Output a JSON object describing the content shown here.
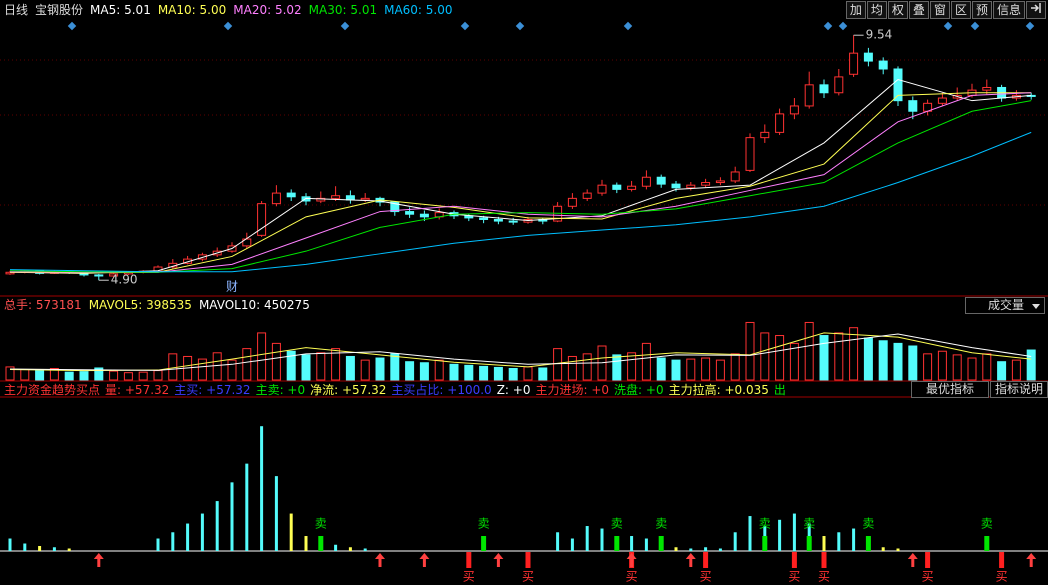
{
  "toolbar": {
    "period": "日线",
    "stock": "宝钢股份",
    "buttons": [
      "加",
      "均",
      "权",
      "叠",
      "窗",
      "区",
      "预",
      "信息"
    ]
  },
  "chart_data": [
    {
      "type": "candlestick",
      "ylim": [
        4.62,
        9.79
      ],
      "up_color": "#ff3232",
      "down_color": "#54fcfc",
      "open": [
        5.02,
        5.05,
        5.08,
        5.03,
        5.06,
        5.04,
        5.0,
        4.98,
        5.02,
        5.05,
        5.07,
        5.15,
        5.22,
        5.3,
        5.38,
        5.45,
        5.55,
        5.75,
        6.35,
        6.55,
        6.48,
        6.4,
        6.45,
        6.5,
        6.42,
        6.45,
        6.38,
        6.2,
        6.15,
        6.1,
        6.18,
        6.12,
        6.08,
        6.05,
        6.02,
        6.0,
        6.05,
        6.02,
        6.3,
        6.45,
        6.55,
        6.7,
        6.62,
        6.68,
        6.85,
        6.72,
        6.65,
        6.7,
        6.75,
        6.78,
        6.98,
        7.6,
        7.7,
        8.05,
        8.2,
        8.6,
        8.45,
        8.8,
        9.2,
        9.05,
        8.9,
        8.3,
        8.1,
        8.25,
        8.35,
        8.4,
        8.5,
        8.55,
        8.35,
        8.4
      ],
      "high": [
        5.08,
        5.1,
        5.09,
        5.08,
        5.07,
        5.05,
        5.02,
        5.04,
        5.07,
        5.09,
        5.18,
        5.3,
        5.36,
        5.42,
        5.52,
        5.62,
        5.8,
        6.4,
        6.7,
        6.62,
        6.55,
        6.58,
        6.68,
        6.6,
        6.55,
        6.48,
        6.4,
        6.28,
        6.22,
        6.26,
        6.22,
        6.16,
        6.12,
        6.1,
        6.08,
        6.1,
        6.08,
        6.38,
        6.55,
        6.62,
        6.8,
        6.75,
        6.78,
        6.98,
        6.9,
        6.78,
        6.76,
        6.82,
        6.85,
        7.05,
        7.68,
        7.85,
        8.15,
        8.35,
        8.85,
        8.7,
        8.9,
        9.54,
        9.3,
        9.12,
        8.95,
        8.38,
        8.32,
        8.45,
        8.55,
        8.62,
        8.7,
        8.6,
        8.5,
        8.45
      ],
      "low": [
        5.0,
        5.03,
        5.01,
        5.02,
        5.02,
        4.97,
        4.9,
        4.96,
        5.0,
        5.03,
        5.05,
        5.12,
        5.2,
        5.26,
        5.34,
        5.42,
        5.5,
        5.72,
        6.3,
        6.4,
        6.32,
        6.36,
        6.4,
        6.35,
        6.38,
        6.3,
        6.12,
        6.08,
        6.02,
        6.05,
        6.06,
        6.02,
        5.98,
        5.96,
        5.95,
        5.97,
        5.96,
        6.0,
        6.25,
        6.4,
        6.5,
        6.55,
        6.58,
        6.62,
        6.65,
        6.58,
        6.6,
        6.66,
        6.7,
        6.74,
        6.95,
        7.5,
        7.65,
        7.95,
        8.15,
        8.35,
        8.4,
        8.75,
        8.95,
        8.8,
        8.2,
        7.95,
        8.02,
        8.2,
        8.3,
        8.36,
        8.42,
        8.28,
        8.3,
        8.32
      ],
      "close": [
        5.05,
        5.08,
        5.03,
        5.06,
        5.04,
        5.0,
        4.98,
        5.02,
        5.05,
        5.07,
        5.15,
        5.22,
        5.3,
        5.38,
        5.45,
        5.55,
        5.68,
        6.35,
        6.55,
        6.48,
        6.4,
        6.45,
        6.5,
        6.42,
        6.45,
        6.38,
        6.2,
        6.15,
        6.1,
        6.18,
        6.12,
        6.08,
        6.05,
        6.02,
        6.0,
        6.05,
        6.02,
        6.3,
        6.45,
        6.55,
        6.7,
        6.62,
        6.68,
        6.85,
        6.72,
        6.65,
        6.7,
        6.75,
        6.78,
        6.95,
        7.6,
        7.7,
        8.05,
        8.2,
        8.6,
        8.45,
        8.75,
        9.2,
        9.05,
        8.9,
        8.3,
        8.1,
        8.25,
        8.35,
        8.4,
        8.5,
        8.55,
        8.35,
        8.4,
        8.38
      ],
      "ma_x": [
        0,
        5,
        10,
        15,
        20,
        25,
        30,
        35,
        40,
        45,
        50,
        55,
        60,
        65,
        69
      ],
      "series": [
        {
          "name": "MA5:",
          "color": "#ffffff",
          "readout": 5.01,
          "readout_label": "5.01",
          "values": [
            5.05,
            5.03,
            5.08,
            5.5,
            6.45,
            6.4,
            6.15,
            6.03,
            6.12,
            6.62,
            6.7,
            7.5,
            8.7,
            8.3,
            8.4
          ]
        },
        {
          "name": "MA10:",
          "color": "#ffff54",
          "readout": 5,
          "readout_label": "5.00",
          "values": [
            5.05,
            5.04,
            5.05,
            5.35,
            6.1,
            6.42,
            6.28,
            6.08,
            6.06,
            6.45,
            6.68,
            7.1,
            8.4,
            8.45,
            8.45
          ]
        },
        {
          "name": "MA20:",
          "color": "#ff80ff",
          "readout": 5.02,
          "readout_label": "5.02",
          "values": [
            5.06,
            5.05,
            5.05,
            5.2,
            5.7,
            6.2,
            6.3,
            6.15,
            6.1,
            6.3,
            6.6,
            6.9,
            7.9,
            8.4,
            8.45
          ]
        },
        {
          "name": "MA30:",
          "color": "#00e600",
          "readout": 5.01,
          "readout_label": "5.01",
          "values": [
            5.08,
            5.06,
            5.05,
            5.12,
            5.45,
            5.9,
            6.15,
            6.18,
            6.15,
            6.25,
            6.5,
            6.75,
            7.5,
            8.1,
            8.3
          ]
        },
        {
          "name": "MA60:",
          "color": "#00bfff",
          "readout": 5,
          "readout_label": "5.00",
          "values": [
            5.1,
            5.08,
            5.06,
            5.06,
            5.2,
            5.4,
            5.6,
            5.75,
            5.85,
            5.95,
            6.1,
            6.3,
            6.75,
            7.25,
            7.7
          ]
        }
      ],
      "annotations": [
        {
          "index": 57,
          "value": 9.54,
          "label": "9.54"
        },
        {
          "index": 6,
          "value": 4.9,
          "label": "4.90"
        }
      ],
      "events": [
        {
          "index": 15,
          "text": "财"
        }
      ]
    },
    {
      "type": "bar",
      "title": "总手:",
      "title_value": 573181,
      "selector": "成交量",
      "ylim": [
        0,
        1300000
      ],
      "values": [
        250000,
        200000,
        180000,
        220000,
        150000,
        160000,
        230000,
        170000,
        140000,
        150000,
        180000,
        500000,
        450000,
        400000,
        520000,
        380000,
        600000,
        900000,
        700000,
        550000,
        480000,
        520000,
        600000,
        450000,
        380000,
        420000,
        500000,
        350000,
        330000,
        380000,
        300000,
        280000,
        260000,
        240000,
        220000,
        250000,
        230000,
        600000,
        450000,
        500000,
        650000,
        480000,
        520000,
        700000,
        420000,
        380000,
        400000,
        420000,
        380000,
        500000,
        1100000,
        900000,
        850000,
        700000,
        1100000,
        850000,
        900000,
        1000000,
        800000,
        750000,
        700000,
        650000,
        500000,
        550000,
        480000,
        420000,
        500000,
        350000,
        380000,
        573181
      ],
      "ma_x": [
        0,
        5,
        10,
        15,
        20,
        25,
        30,
        35,
        40,
        45,
        50,
        55,
        60,
        65,
        69
      ],
      "series": [
        {
          "name": "MAVOL5:",
          "color": "#ffff54",
          "readout": 398535,
          "values": [
            200000,
            180000,
            190000,
            400000,
            620000,
            480000,
            340000,
            250000,
            420000,
            520000,
            480000,
            900000,
            820000,
            520000,
            398535
          ]
        },
        {
          "name": "MAVOL10:",
          "color": "#ffffff",
          "readout": 450275,
          "values": [
            210000,
            195000,
            185000,
            300000,
            500000,
            540000,
            400000,
            300000,
            330000,
            480000,
            470000,
            700000,
            880000,
            620000,
            450275
          ]
        }
      ]
    },
    {
      "type": "signal-bar",
      "title": "主力资金趋势买点",
      "ylim": [
        0,
        125
      ],
      "up_color": "#54fcfc",
      "down_color": "#ffff54",
      "readouts": [
        {
          "text": "量: +57.32",
          "color": "#ff3232"
        },
        {
          "text": "主买: +57.32",
          "color": "#3c3cff"
        },
        {
          "text": "主卖: +0",
          "color": "#00e600"
        },
        {
          "text": "净流: +57.32",
          "color": "#ffff54"
        },
        {
          "text": "主买占比: +100.0",
          "color": "#3c3cff"
        },
        {
          "text": "Z: +0",
          "color": "#ffffff"
        },
        {
          "text": "主力进场: +0",
          "color": "#ff3232"
        },
        {
          "text": "洗盘: +0",
          "color": "#00e600"
        },
        {
          "text": "主力拉高: +0.035",
          "color": "#ffff54"
        },
        {
          "text": "出",
          "color": "#00e600"
        }
      ],
      "buttons": [
        "最优指标",
        "指标说明"
      ],
      "values": [
        10,
        6,
        4,
        3,
        2,
        0,
        0,
        0,
        0,
        0,
        10,
        15,
        22,
        30,
        40,
        55,
        70,
        100,
        60,
        30,
        12,
        8,
        5,
        3,
        2,
        0,
        0,
        0,
        0,
        0,
        0,
        0,
        0,
        0,
        0,
        0,
        0,
        15,
        10,
        20,
        18,
        8,
        12,
        10,
        4,
        3,
        2,
        3,
        2,
        15,
        28,
        20,
        25,
        30,
        22,
        12,
        15,
        18,
        6,
        3,
        2,
        0,
        0,
        0,
        0,
        0,
        0,
        0,
        0,
        0
      ],
      "sell_label": "卖",
      "buy_label": "买",
      "sell": [
        21,
        32,
        41,
        44,
        51,
        54,
        58,
        66
      ],
      "buy": [
        31,
        35,
        42,
        47,
        53,
        55,
        62,
        67
      ],
      "arrows": [
        6,
        25,
        28,
        33,
        42,
        46,
        61,
        69
      ]
    }
  ]
}
